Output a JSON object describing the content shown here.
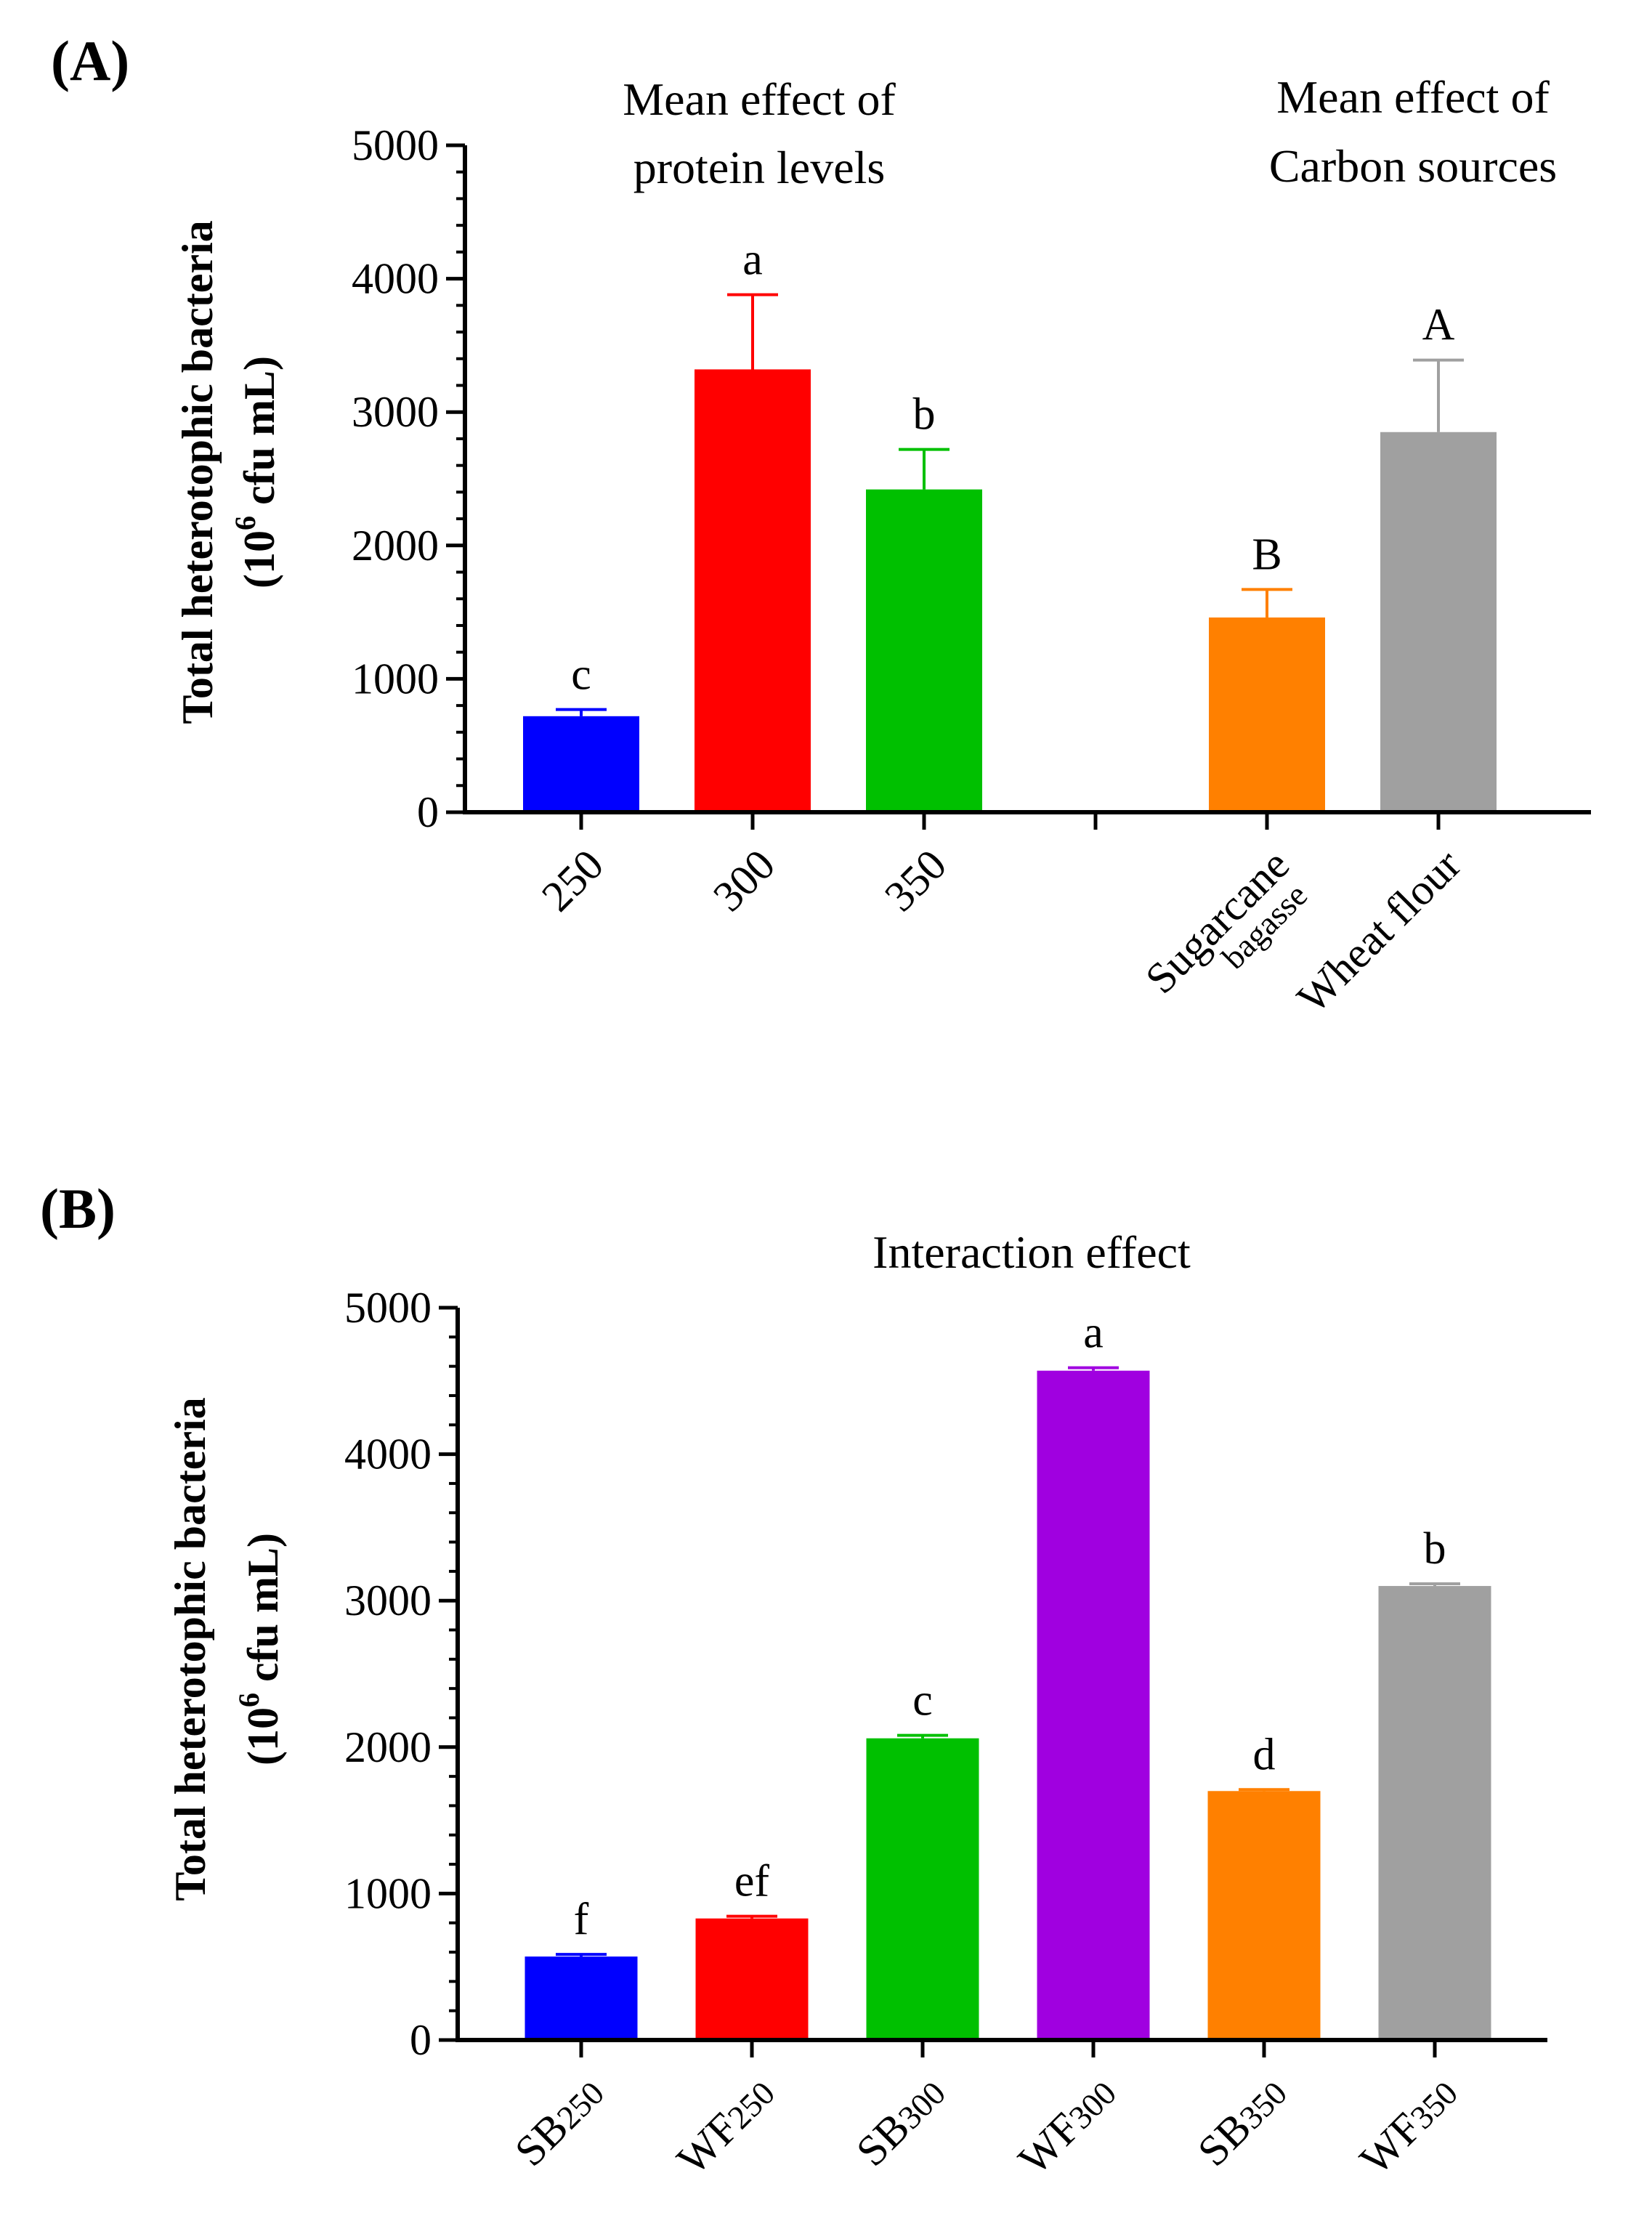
{
  "figure": {
    "panels": [
      {
        "label": "(A)",
        "ylabel_line1": "Total heterotophic bacteria",
        "ylabel_line2_base": "(10",
        "ylabel_line2_sup": "6",
        "ylabel_line2_rest": " cfu mL)",
        "annotations": [
          {
            "lines": [
              "Mean effect of",
              "protein levels"
            ]
          },
          {
            "lines": [
              "Mean effect of",
              "Carbon sources"
            ]
          }
        ]
      },
      {
        "label": "(B)",
        "ylabel_line1": "Total heterotophic bacteria",
        "ylabel_line2_base": "(10",
        "ylabel_line2_sup": "6",
        "ylabel_line2_rest": " cfu mL)",
        "annotations": [
          {
            "lines": [
              "Interaction effect"
            ]
          }
        ]
      }
    ]
  },
  "chart_data": [
    {
      "type": "bar",
      "title": "",
      "ylabel": "Total heterotophic bacteria (10^6 cfu mL)",
      "ylim": [
        0,
        5000
      ],
      "yticks": [
        0,
        1000,
        2000,
        3000,
        4000,
        5000
      ],
      "categories": [
        {
          "label": "250",
          "value": 720,
          "error": 50,
          "letter": "c",
          "color": "#0000ff"
        },
        {
          "label": "300",
          "value": 3320,
          "error": 560,
          "letter": "a",
          "color": "#ff0000"
        },
        {
          "label": "350",
          "value": 2420,
          "error": 300,
          "letter": "b",
          "color": "#00c000"
        },
        {
          "label": "",
          "value": null,
          "error": null,
          "letter": "",
          "color": ""
        },
        {
          "label": "Sugarcane",
          "label_sub": "bagasse",
          "value": 1460,
          "error": 210,
          "letter": "B",
          "color": "#ff8000"
        },
        {
          "label": "Wheat flour",
          "value": 2850,
          "error": 540,
          "letter": "A",
          "color": "#a0a0a0"
        }
      ]
    },
    {
      "type": "bar",
      "title": "",
      "ylabel": "Total heterotophic bacteria (10^6 cfu mL)",
      "ylim": [
        0,
        5000
      ],
      "yticks": [
        0,
        1000,
        2000,
        3000,
        4000,
        5000
      ],
      "categories": [
        {
          "label": "SB",
          "label_sub": "250",
          "value": 570,
          "error": 15,
          "letter": "f",
          "color": "#0000ff"
        },
        {
          "label": "WF",
          "label_sub": "250",
          "value": 830,
          "error": 15,
          "letter": "ef",
          "color": "#ff0000"
        },
        {
          "label": "SB",
          "label_sub": "300",
          "value": 2060,
          "error": 20,
          "letter": "c",
          "color": "#00c000"
        },
        {
          "label": "WF",
          "label_sub": "300",
          "value": 4570,
          "error": 20,
          "letter": "a",
          "color": "#a000e0"
        },
        {
          "label": "SB",
          "label_sub": "350",
          "value": 1700,
          "error": 10,
          "letter": "d",
          "color": "#ff8000"
        },
        {
          "label": "WF",
          "label_sub": "350",
          "value": 3100,
          "error": 15,
          "letter": "b",
          "color": "#a0a0a0"
        }
      ]
    }
  ]
}
